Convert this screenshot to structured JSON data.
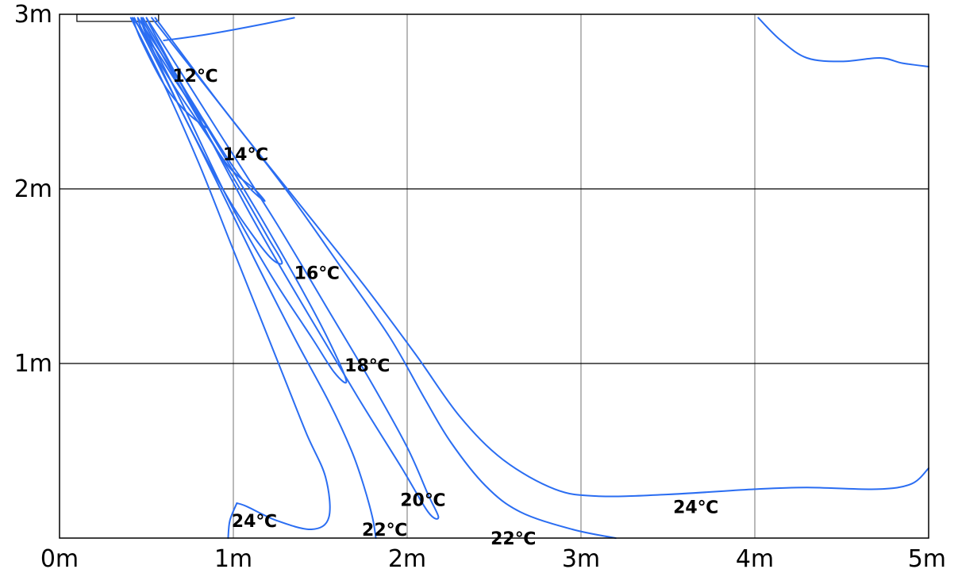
{
  "chart_data": {
    "type": "contour",
    "xlim": [
      0,
      5
    ],
    "ylim": [
      0,
      3
    ],
    "x_ticks": [
      "0m",
      "1m",
      "2m",
      "3m",
      "4m",
      "5m"
    ],
    "y_ticks": [
      "1m",
      "2m",
      "3m"
    ],
    "grid": true,
    "line_color": "#2a6df2",
    "source": {
      "shape": "air-outlet-box",
      "x_range": [
        0.1,
        0.57
      ],
      "y": 3.0
    },
    "contours": [
      {
        "label": "12℃",
        "label_pos": [
          0.65,
          2.65
        ],
        "points": [
          [
            0.42,
            2.98
          ],
          [
            0.55,
            2.8
          ],
          [
            0.68,
            2.6
          ],
          [
            0.78,
            2.45
          ],
          [
            0.85,
            2.35
          ],
          [
            0.72,
            2.45
          ],
          [
            0.6,
            2.6
          ],
          [
            0.47,
            2.85
          ],
          [
            0.42,
            2.98
          ]
        ]
      },
      {
        "label": "14℃",
        "label_pos": [
          0.94,
          2.2
        ],
        "points": [
          [
            0.45,
            2.98
          ],
          [
            0.7,
            2.6
          ],
          [
            0.95,
            2.2
          ],
          [
            1.08,
            2.02
          ],
          [
            1.18,
            1.93
          ],
          [
            1.12,
            2.0
          ],
          [
            0.98,
            2.12
          ],
          [
            0.82,
            2.35
          ],
          [
            0.62,
            2.65
          ],
          [
            0.48,
            2.9
          ],
          [
            0.45,
            2.98
          ]
        ]
      },
      {
        "label": "16℃",
        "label_pos": [
          1.35,
          1.52
        ],
        "points": [
          [
            0.47,
            2.98
          ],
          [
            0.8,
            2.4
          ],
          [
            1.05,
            1.98
          ],
          [
            1.2,
            1.72
          ],
          [
            1.28,
            1.58
          ],
          [
            1.22,
            1.6
          ],
          [
            1.1,
            1.75
          ],
          [
            0.95,
            1.98
          ],
          [
            0.7,
            2.45
          ],
          [
            0.5,
            2.88
          ],
          [
            0.47,
            2.98
          ]
        ]
      },
      {
        "label": "18℃",
        "label_pos": [
          1.64,
          0.99
        ],
        "points": [
          [
            0.48,
            2.98
          ],
          [
            0.85,
            2.35
          ],
          [
            1.15,
            1.85
          ],
          [
            1.38,
            1.45
          ],
          [
            1.55,
            1.13
          ],
          [
            1.65,
            0.9
          ],
          [
            1.58,
            0.95
          ],
          [
            1.45,
            1.15
          ],
          [
            1.22,
            1.5
          ],
          [
            0.98,
            1.92
          ],
          [
            0.7,
            2.5
          ],
          [
            0.5,
            2.9
          ],
          [
            0.48,
            2.98
          ]
        ]
      },
      {
        "label": "20℃",
        "label_pos": [
          1.96,
          0.22
        ],
        "points": [
          [
            0.5,
            2.98
          ],
          [
            0.9,
            2.35
          ],
          [
            1.25,
            1.8
          ],
          [
            1.55,
            1.3
          ],
          [
            1.8,
            0.88
          ],
          [
            2.0,
            0.52
          ],
          [
            2.12,
            0.25
          ],
          [
            2.18,
            0.12
          ],
          [
            2.12,
            0.15
          ],
          [
            1.97,
            0.4
          ],
          [
            1.72,
            0.8
          ],
          [
            1.42,
            1.3
          ],
          [
            1.1,
            1.85
          ],
          [
            0.78,
            2.45
          ],
          [
            0.55,
            2.88
          ],
          [
            0.5,
            2.98
          ]
        ]
      },
      {
        "label": "22℃",
        "label_pos": [
          1.74,
          0.05
        ],
        "points": [
          [
            0.43,
            2.98
          ],
          [
            0.65,
            2.55
          ],
          [
            0.9,
            2.05
          ],
          [
            1.12,
            1.6
          ],
          [
            1.35,
            1.15
          ],
          [
            1.55,
            0.78
          ],
          [
            1.68,
            0.5
          ],
          [
            1.75,
            0.3
          ],
          [
            1.8,
            0.12
          ],
          [
            1.82,
            0.0
          ]
        ]
      },
      {
        "label": "22℃",
        "label_pos": [
          2.48,
          0.0
        ],
        "points": [
          [
            0.53,
            2.98
          ],
          [
            0.95,
            2.45
          ],
          [
            1.3,
            2.0
          ],
          [
            1.62,
            1.55
          ],
          [
            1.9,
            1.15
          ],
          [
            2.1,
            0.8
          ],
          [
            2.25,
            0.55
          ],
          [
            2.45,
            0.3
          ],
          [
            2.65,
            0.15
          ],
          [
            2.95,
            0.05
          ],
          [
            3.2,
            0.0
          ]
        ]
      },
      {
        "label": "24℃",
        "label_pos": [
          0.99,
          0.1
        ],
        "points": [
          [
            0.41,
            2.98
          ],
          [
            0.6,
            2.6
          ],
          [
            0.8,
            2.15
          ],
          [
            0.98,
            1.7
          ],
          [
            1.12,
            1.35
          ],
          [
            1.28,
            0.95
          ],
          [
            1.42,
            0.6
          ],
          [
            1.53,
            0.35
          ],
          [
            1.55,
            0.12
          ],
          [
            1.45,
            0.05
          ],
          [
            1.25,
            0.1
          ],
          [
            1.08,
            0.18
          ],
          [
            1.02,
            0.2
          ]
        ]
      },
      {
        "label": "24℃",
        "label_pos": [
          3.53,
          0.18
        ],
        "points": [
          [
            0.6,
            2.85
          ],
          [
            0.82,
            2.88
          ],
          [
            1.1,
            2.93
          ],
          [
            1.35,
            2.98
          ]
        ]
      },
      {
        "label": "",
        "points": [
          [
            0.55,
            2.98
          ],
          [
            0.95,
            2.45
          ],
          [
            1.35,
            1.95
          ],
          [
            1.75,
            1.45
          ],
          [
            2.05,
            1.05
          ],
          [
            2.3,
            0.7
          ],
          [
            2.55,
            0.45
          ],
          [
            2.85,
            0.28
          ],
          [
            3.1,
            0.24
          ],
          [
            3.5,
            0.25
          ],
          [
            4.0,
            0.28
          ],
          [
            4.3,
            0.29
          ],
          [
            4.7,
            0.28
          ],
          [
            4.9,
            0.31
          ],
          [
            5.0,
            0.4
          ]
        ]
      },
      {
        "label": "",
        "points": [
          [
            4.02,
            2.98
          ],
          [
            4.15,
            2.85
          ],
          [
            4.3,
            2.75
          ],
          [
            4.5,
            2.73
          ],
          [
            4.72,
            2.75
          ],
          [
            4.85,
            2.72
          ],
          [
            5.0,
            2.7
          ]
        ]
      },
      {
        "label": "",
        "points": [
          [
            1.02,
            0.2
          ],
          [
            0.98,
            0.1
          ],
          [
            0.97,
            0.0
          ]
        ]
      }
    ]
  }
}
